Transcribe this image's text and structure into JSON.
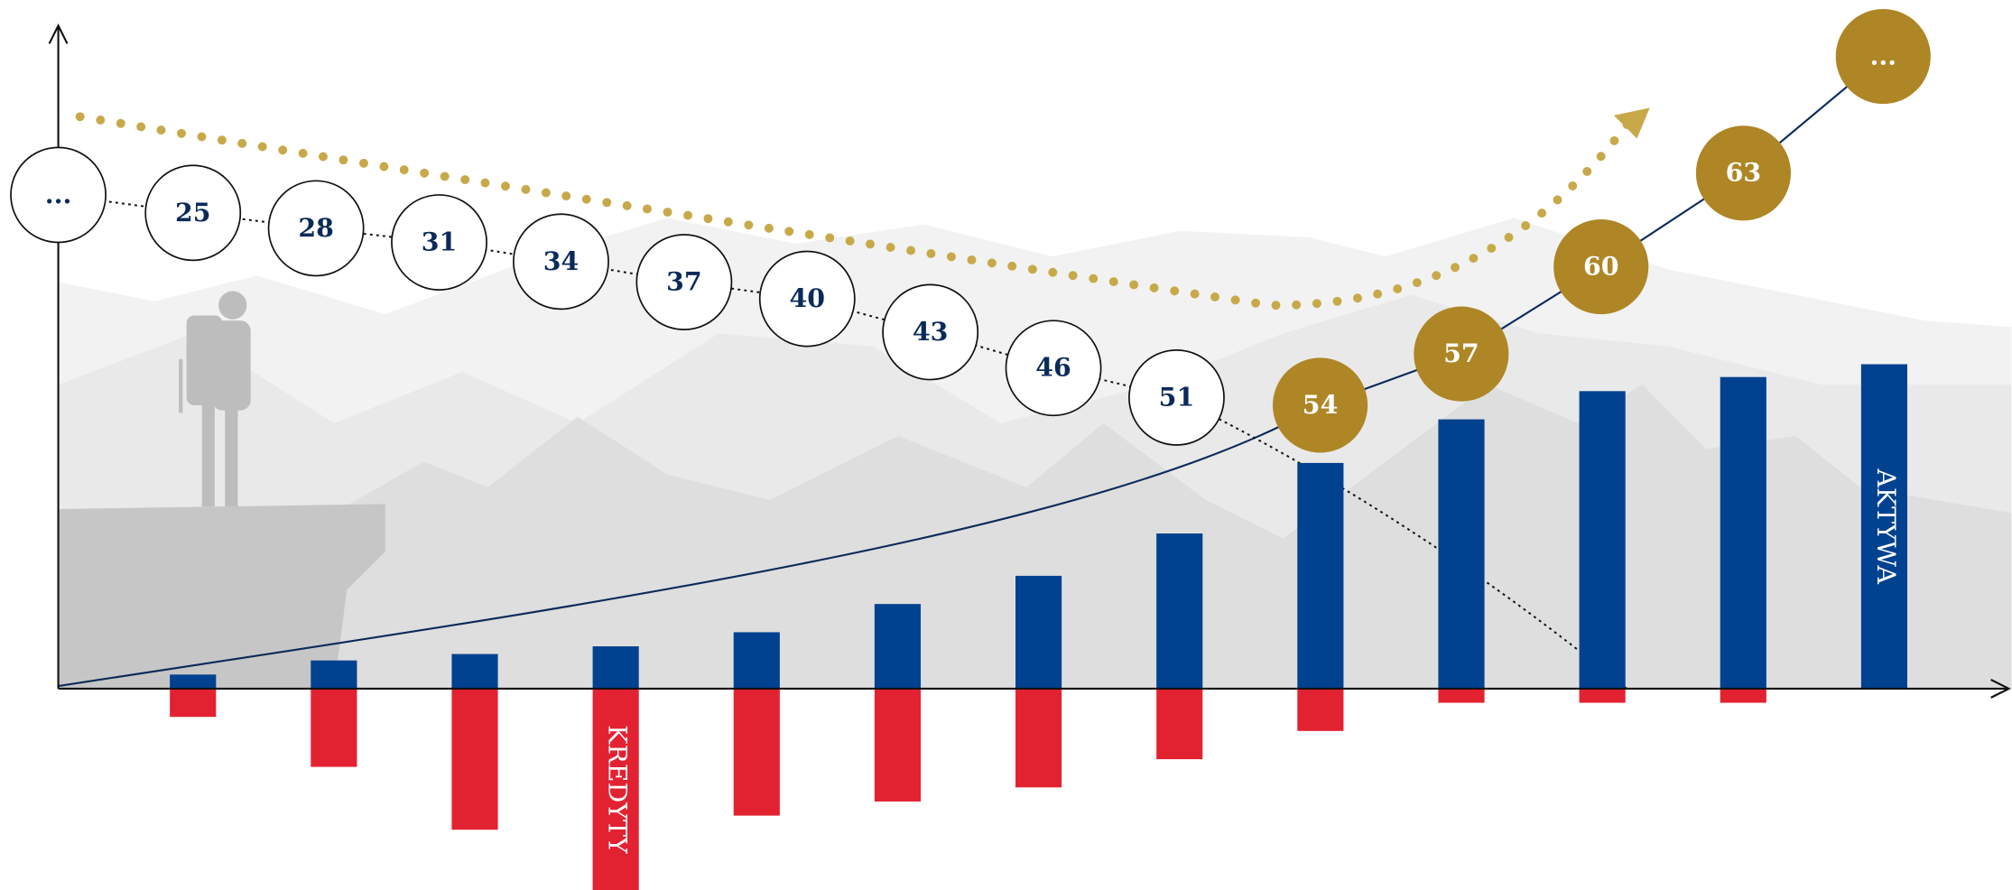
{
  "chart_data": {
    "type": "bar",
    "ages": [
      "...",
      "25",
      "28",
      "31",
      "34",
      "37",
      "40",
      "43",
      "46",
      "51",
      "54",
      "57",
      "60",
      "63",
      "..."
    ],
    "categories": [
      null,
      null,
      null,
      null,
      null,
      null,
      null,
      null,
      null,
      null,
      null,
      null,
      null
    ],
    "series": [
      {
        "name": "AKTYWA",
        "color": "#004290",
        "values": [
          11,
          22,
          27,
          33,
          44,
          66,
          88,
          121,
          176,
          210,
          232,
          243,
          253
        ]
      },
      {
        "name": "KREDYTY",
        "color": "#e32231",
        "values": [
          -22,
          -61,
          -110,
          -157,
          -99,
          -88,
          -77,
          -55,
          -33,
          -11,
          -11,
          -11,
          null
        ]
      }
    ],
    "ylim": [
      -157,
      517
    ]
  }
}
